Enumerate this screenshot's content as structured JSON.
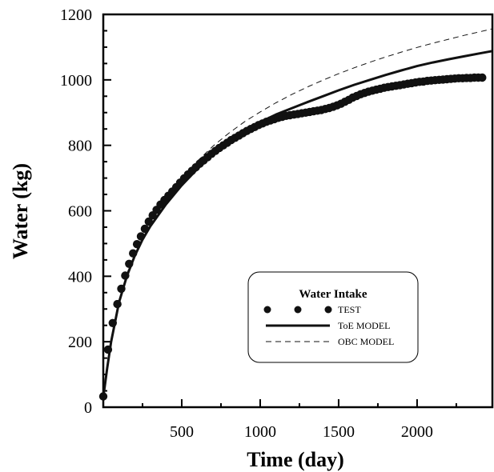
{
  "chart_data": {
    "type": "line",
    "xlabel": "Time (day)",
    "ylabel": "Water (kg)",
    "xlim": [
      0,
      2480
    ],
    "ylim": [
      0,
      1200
    ],
    "x_ticks": [
      500,
      1000,
      1500,
      2000
    ],
    "y_ticks": [
      0,
      200,
      400,
      600,
      800,
      1000,
      1200
    ],
    "grid": false,
    "legend": {
      "title": "Water Intake",
      "placement": "center-right"
    },
    "colors": {
      "series": "#111111",
      "axis": "#000000"
    },
    "series": [
      {
        "name": "TEST",
        "style": "markers",
        "x": [
          0,
          30,
          60,
          90,
          115,
          140,
          165,
          190,
          215,
          240,
          265,
          290,
          315,
          340,
          365,
          390,
          415,
          440,
          465,
          490,
          515,
          540,
          565,
          590,
          615,
          640,
          665,
          690,
          715,
          740,
          765,
          790,
          815,
          840,
          865,
          890,
          915,
          940,
          965,
          990,
          1015,
          1040,
          1065,
          1090,
          1115,
          1140,
          1165,
          1190,
          1215,
          1240,
          1265,
          1290,
          1315,
          1340,
          1365,
          1390,
          1415,
          1440,
          1465,
          1490,
          1515,
          1540,
          1565,
          1590,
          1615,
          1640,
          1665,
          1690,
          1715,
          1740,
          1765,
          1790,
          1815,
          1840,
          1865,
          1890,
          1915,
          1940,
          1965,
          1990,
          2015,
          2040,
          2065,
          2090,
          2115,
          2140,
          2165,
          2190,
          2215,
          2240,
          2265,
          2290,
          2315,
          2340,
          2365,
          2390,
          2415
        ],
        "y": [
          33,
          176,
          257,
          315,
          362,
          402,
          438,
          470,
          498,
          522,
          545,
          567,
          586,
          603,
          619,
          633,
          646,
          659,
          672,
          686,
          699,
          711,
          722,
          733,
          744,
          754,
          764,
          774,
          783,
          792,
          800,
          808,
          816,
          823,
          830,
          837,
          844,
          850,
          856,
          862,
          867,
          872,
          876,
          880,
          884,
          887,
          890,
          892,
          894,
          896,
          898,
          900,
          902,
          904,
          906,
          908,
          911,
          914,
          918,
          922,
          927,
          933,
          939,
          946,
          951,
          956,
          960,
          964,
          967,
          970,
          973,
          976,
          978,
          980,
          982,
          984,
          986,
          988,
          990,
          992,
          994,
          995,
          997,
          998,
          999,
          1000,
          1001,
          1002,
          1003,
          1004,
          1005,
          1005,
          1006,
          1006,
          1007,
          1007,
          1007
        ]
      },
      {
        "name": "ToE MODEL",
        "style": "solid",
        "x": [
          0,
          25,
          50,
          100,
          150,
          200,
          250,
          300,
          400,
          500,
          600,
          700,
          800,
          900,
          1000,
          1100,
          1200,
          1300,
          1400,
          1500,
          1600,
          1700,
          1800,
          1900,
          2000,
          2100,
          2200,
          2300,
          2400,
          2480
        ],
        "y": [
          30,
          120,
          200,
          320,
          400,
          462,
          512,
          553,
          620,
          678,
          728,
          772,
          810,
          843,
          871,
          894,
          913,
          932,
          950,
          968,
          985,
          1000,
          1015,
          1029,
          1042,
          1053,
          1063,
          1072,
          1081,
          1088
        ]
      },
      {
        "name": "OBC MODEL",
        "style": "dashed",
        "x": [
          0,
          25,
          50,
          100,
          150,
          200,
          250,
          300,
          400,
          500,
          600,
          700,
          800,
          900,
          1000,
          1100,
          1200,
          1300,
          1400,
          1500,
          1600,
          1700,
          1800,
          1900,
          2000,
          2100,
          2200,
          2300,
          2400,
          2480
        ],
        "y": [
          30,
          125,
          205,
          325,
          407,
          470,
          522,
          566,
          640,
          700,
          752,
          798,
          837,
          872,
          902,
          930,
          955,
          978,
          999,
          1019,
          1037,
          1054,
          1070,
          1085,
          1099,
          1112,
          1124,
          1136,
          1147,
          1156
        ]
      }
    ]
  }
}
